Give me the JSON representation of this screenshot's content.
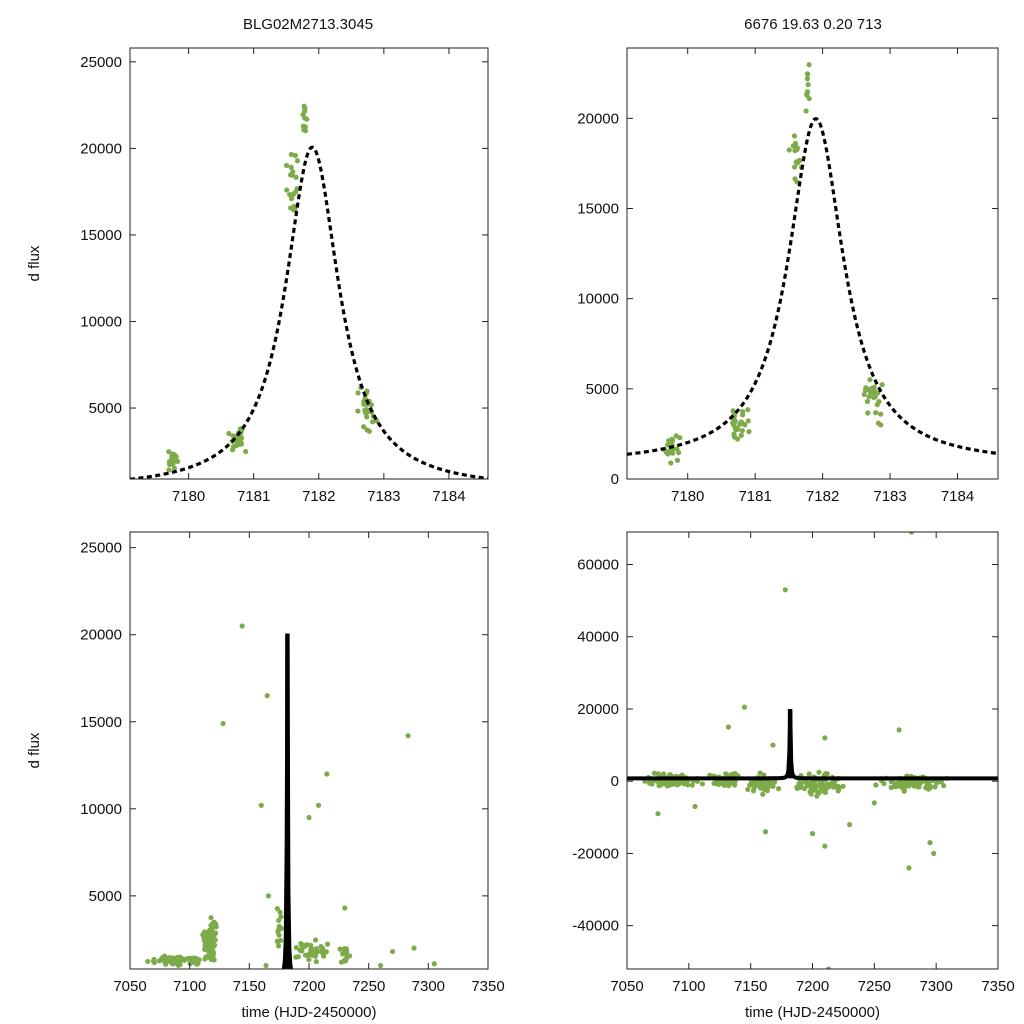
{
  "figure": {
    "title_left": "BLG02M2713.3045",
    "title_right": "6676  19.63  0.20  713",
    "colors": {
      "data": "#7eab4a",
      "model": "#000000",
      "frame": "#222222"
    }
  },
  "chart_data": [
    {
      "id": "top-left",
      "type": "scatter",
      "title": "BLG02M2713.3045",
      "xlabel": "",
      "ylabel": "d flux",
      "xlim": [
        7179.1,
        7184.6
      ],
      "ylim": [
        900,
        25800
      ],
      "xticks": [
        7180,
        7181,
        7182,
        7183,
        7184
      ],
      "xtick_labels": [
        "7180",
        "7181",
        "7182",
        "7183",
        "7184"
      ],
      "yticks": [
        5000,
        10000,
        15000,
        20000,
        25000
      ],
      "ytick_labels": [
        "5000",
        "10000",
        "15000",
        "20000",
        "25000"
      ],
      "model": {
        "t0": 7181.9,
        "amp": 19800,
        "tau": 0.5,
        "base": 270
      },
      "clusters": [
        {
          "x": 7179.75,
          "xw": 0.17,
          "y": 1900,
          "yw": 750,
          "n": 22
        },
        {
          "x": 7180.75,
          "xw": 0.2,
          "y": 3200,
          "yw": 1000,
          "n": 26
        },
        {
          "x": 7181.6,
          "xw": 0.12,
          "y": 18000,
          "yw": 2200,
          "n": 20
        },
        {
          "x": 7181.78,
          "xw": 0.04,
          "y": 21800,
          "yw": 2400,
          "n": 10
        },
        {
          "x": 7182.75,
          "xw": 0.22,
          "y": 4700,
          "yw": 1800,
          "n": 26
        }
      ]
    },
    {
      "id": "top-right",
      "type": "scatter",
      "title": "6676  19.63  0.20  713",
      "xlabel": "",
      "ylabel": "",
      "xlim": [
        7179.1,
        7184.6
      ],
      "ylim": [
        0,
        23900
      ],
      "xticks": [
        7180,
        7181,
        7182,
        7183,
        7184
      ],
      "xtick_labels": [
        "7180",
        "7181",
        "7182",
        "7183",
        "7184"
      ],
      "yticks": [
        0,
        5000,
        10000,
        15000,
        20000
      ],
      "ytick_labels": [
        "0",
        "5000",
        "10000",
        "15000",
        "20000"
      ],
      "model": {
        "t0": 7181.9,
        "amp": 19200,
        "tau": 0.5,
        "base": 780
      },
      "clusters": [
        {
          "x": 7179.75,
          "xw": 0.17,
          "y": 1800,
          "yw": 1100,
          "n": 22
        },
        {
          "x": 7180.75,
          "xw": 0.2,
          "y": 3200,
          "yw": 1000,
          "n": 26
        },
        {
          "x": 7181.6,
          "xw": 0.12,
          "y": 17800,
          "yw": 2200,
          "n": 20
        },
        {
          "x": 7181.78,
          "xw": 0.04,
          "y": 21800,
          "yw": 2200,
          "n": 10
        },
        {
          "x": 7182.75,
          "xw": 0.22,
          "y": 4600,
          "yw": 1800,
          "n": 26
        }
      ]
    },
    {
      "id": "bottom-left",
      "type": "scatter",
      "title": "",
      "xlabel": "time (HJD-2450000)",
      "ylabel": "d flux",
      "xlim": [
        7050,
        7350
      ],
      "ylim": [
        800,
        25900
      ],
      "xticks": [
        7050,
        7100,
        7150,
        7200,
        7250,
        7300,
        7350
      ],
      "xtick_labels": [
        "7050",
        "7100",
        "7150",
        "7200",
        "7250",
        "7300",
        "7350"
      ],
      "yticks": [
        5000,
        10000,
        15000,
        20000,
        25000
      ],
      "ytick_labels": [
        "5000",
        "10000",
        "15000",
        "20000",
        "25000"
      ],
      "model": {
        "t0": 7181.9,
        "amp": 19800,
        "tau": 0.5,
        "base": 270
      },
      "clusters": [
        {
          "x": 7090,
          "xw": 28,
          "y": 1300,
          "yw": 400,
          "n": 70
        },
        {
          "x": 7117,
          "xw": 7,
          "y": 2300,
          "yw": 1300,
          "n": 80
        },
        {
          "x": 7120,
          "xw": 4,
          "y": 3300,
          "yw": 500,
          "n": 14
        },
        {
          "x": 7175,
          "xw": 3,
          "y": 3000,
          "yw": 2000,
          "n": 14
        },
        {
          "x": 7200,
          "xw": 22,
          "y": 1800,
          "yw": 900,
          "n": 40
        },
        {
          "x": 7230,
          "xw": 8,
          "y": 1500,
          "yw": 600,
          "n": 12
        }
      ],
      "outliers": [
        [
          7144,
          20500
        ],
        [
          7128,
          14900
        ],
        [
          7165,
          16500
        ],
        [
          7160,
          10200
        ],
        [
          7208,
          10200
        ],
        [
          7215,
          12000
        ],
        [
          7283,
          14200
        ],
        [
          7200,
          9500
        ],
        [
          7166,
          5000
        ],
        [
          7230,
          4300
        ],
        [
          7270,
          1800
        ],
        [
          7305,
          1100
        ],
        [
          7288,
          2000
        ],
        [
          7164,
          1000
        ],
        [
          7260,
          1000
        ]
      ]
    },
    {
      "id": "bottom-right",
      "type": "scatter",
      "title": "",
      "xlabel": "time (HJD-2450000)",
      "ylabel": "",
      "xlim": [
        7050,
        7350
      ],
      "ylim": [
        -52000,
        69000
      ],
      "xticks": [
        7050,
        7100,
        7150,
        7200,
        7250,
        7300,
        7350
      ],
      "xtick_labels": [
        "7050",
        "7100",
        "7150",
        "7200",
        "7250",
        "7300",
        "7350"
      ],
      "yticks": [
        -40000,
        -20000,
        0,
        20000,
        40000,
        60000
      ],
      "ytick_labels": [
        "-40000",
        "-20000",
        "0",
        "20000",
        "40000",
        "60000"
      ],
      "model": {
        "t0": 7181.9,
        "amp": 19200,
        "tau": 0.5,
        "base": 780
      },
      "clusters": [
        {
          "x": 7085,
          "xw": 30,
          "y": 300,
          "yw": 2500,
          "n": 90
        },
        {
          "x": 7130,
          "xw": 15,
          "y": 200,
          "yw": 2500,
          "n": 50
        },
        {
          "x": 7160,
          "xw": 15,
          "y": -800,
          "yw": 3500,
          "n": 60
        },
        {
          "x": 7205,
          "xw": 23,
          "y": -600,
          "yw": 4000,
          "n": 90
        },
        {
          "x": 7280,
          "xw": 33,
          "y": -300,
          "yw": 2800,
          "n": 110
        }
      ],
      "outliers": [
        [
          7178,
          53000
        ],
        [
          7280,
          69000
        ],
        [
          7145,
          20500
        ],
        [
          7132,
          15000
        ],
        [
          7168,
          10000
        ],
        [
          7210,
          12000
        ],
        [
          7270,
          14200
        ],
        [
          7210,
          -18000
        ],
        [
          7200,
          -14500
        ],
        [
          7278,
          -24000
        ],
        [
          7298,
          -20000
        ],
        [
          7295,
          -17000
        ],
        [
          7213,
          -52000
        ],
        [
          7162,
          -14000
        ],
        [
          7230,
          -12000
        ],
        [
          7075,
          -9000
        ],
        [
          7105,
          -7000
        ],
        [
          7250,
          -6000
        ]
      ]
    }
  ]
}
